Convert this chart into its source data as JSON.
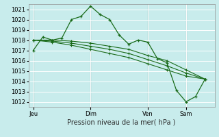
{
  "title": "Pression niveau de la mer( hPa )",
  "bg_color": "#c8ecec",
  "plot_bg_color": "#c8ecec",
  "grid_color": "#ffffff",
  "line_color": "#1a6b1a",
  "vline_color": "#607060",
  "ylim": [
    1011.5,
    1021.5
  ],
  "yticks": [
    1012,
    1013,
    1014,
    1015,
    1016,
    1017,
    1018,
    1019,
    1020,
    1021
  ],
  "xtick_labels": [
    "Jeu",
    "Dim",
    "Ven",
    "Sam"
  ],
  "xtick_positions": [
    0,
    24,
    48,
    64
  ],
  "vline_positions": [
    0,
    24,
    48,
    64
  ],
  "xlim": [
    -2,
    76
  ],
  "series1_x": [
    0,
    4,
    8,
    12,
    16,
    20,
    24,
    28,
    32,
    36,
    40,
    44,
    48,
    52,
    56,
    60,
    64,
    68,
    72
  ],
  "series1_y": [
    1017.0,
    1018.3,
    1018.0,
    1018.2,
    1020.0,
    1020.3,
    1021.3,
    1020.5,
    1020.0,
    1018.5,
    1017.6,
    1018.0,
    1017.8,
    1016.2,
    1015.8,
    1013.1,
    1012.0,
    1012.5,
    1014.2
  ],
  "series2_x": [
    0,
    8,
    16,
    24,
    32,
    40,
    48,
    56,
    64,
    72
  ],
  "series2_y": [
    1018.0,
    1018.0,
    1017.9,
    1017.7,
    1017.4,
    1017.1,
    1016.5,
    1016.0,
    1015.1,
    1014.2
  ],
  "series3_x": [
    0,
    8,
    16,
    24,
    32,
    40,
    48,
    56,
    64,
    72
  ],
  "series3_y": [
    1018.0,
    1017.9,
    1017.7,
    1017.4,
    1017.1,
    1016.7,
    1016.1,
    1015.5,
    1014.8,
    1014.2
  ],
  "series4_x": [
    0,
    8,
    16,
    24,
    32,
    40,
    48,
    56,
    64,
    72
  ],
  "series4_y": [
    1018.0,
    1017.8,
    1017.5,
    1017.1,
    1016.7,
    1016.3,
    1015.7,
    1015.1,
    1014.5,
    1014.2
  ]
}
